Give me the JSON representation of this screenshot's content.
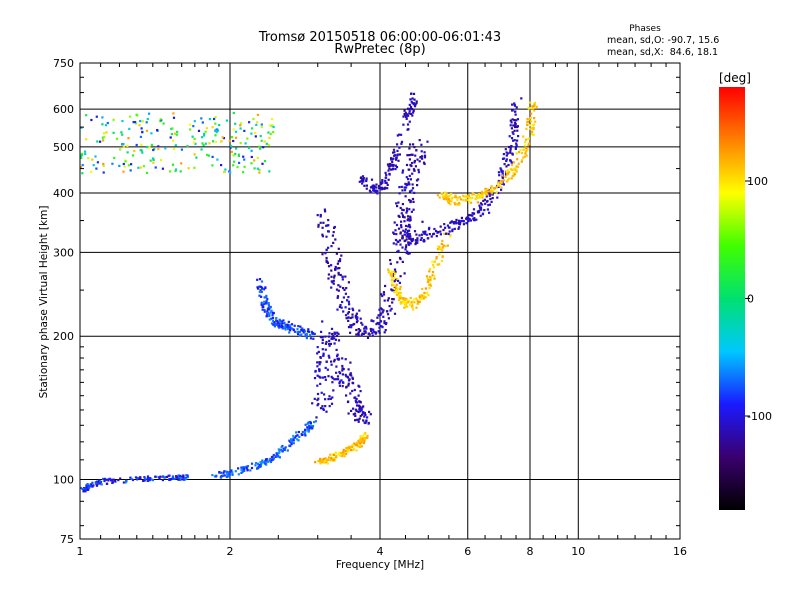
{
  "chart_data": {
    "type": "scatter",
    "title": "Tromsø 20150518 06:00:00-06:01:43",
    "subtitle": "RwPretec (8p)",
    "xlabel": "Frequency [MHz]",
    "ylabel": "Stationary phase Virtual Height [km]",
    "x_scale": "log2",
    "y_scale": "log",
    "xlim": [
      1,
      16
    ],
    "ylim": [
      75,
      750
    ],
    "x_ticks": [
      1,
      2,
      4,
      6,
      8,
      10,
      16
    ],
    "y_ticks": [
      75,
      100,
      200,
      300,
      400,
      500,
      600,
      750
    ],
    "grid": true,
    "stats": {
      "heading": "Phases",
      "line_o": "mean, sd,O: -90.7, 15.6",
      "line_x": "mean, sd,X:  84.6, 18.1"
    },
    "colorbar": {
      "label": "[deg]",
      "range": [
        -180,
        180
      ],
      "ticks": [
        100,
        0,
        -100
      ],
      "stops": [
        "#000000",
        "#3a006e",
        "#1a1aff",
        "#00c8ff",
        "#00e070",
        "#40ff00",
        "#ffff00",
        "#ff8000",
        "#ff0000"
      ]
    },
    "traces": [
      {
        "kind": "band",
        "x": [
          1.0,
          2.45
        ],
        "y": [
          440,
          590
        ],
        "phase": [
          -110,
          130
        ]
      },
      {
        "kind": "curve",
        "pts": [
          [
            1.0,
            95
          ],
          [
            1.05,
            97
          ],
          [
            1.1,
            99
          ],
          [
            1.3,
            100
          ],
          [
            1.5,
            101
          ],
          [
            1.65,
            101
          ]
        ],
        "spread": 0.012,
        "phase": [
          -115,
          -60
        ]
      },
      {
        "kind": "curve",
        "pts": [
          [
            1.85,
            102
          ],
          [
            2.0,
            103
          ],
          [
            2.2,
            106
          ],
          [
            2.4,
            110
          ],
          [
            2.6,
            117
          ],
          [
            2.8,
            126
          ],
          [
            2.95,
            132
          ]
        ],
        "spread": 0.015,
        "phase": [
          -95,
          -55
        ]
      },
      {
        "kind": "curve",
        "pts": [
          [
            3.0,
            108
          ],
          [
            3.2,
            111
          ],
          [
            3.4,
            114
          ],
          [
            3.6,
            118
          ],
          [
            3.75,
            124
          ]
        ],
        "spread": 0.015,
        "phase": [
          95,
          130
        ]
      },
      {
        "kind": "curve",
        "pts": [
          [
            2.3,
            260
          ],
          [
            2.35,
            230
          ],
          [
            2.45,
            215
          ],
          [
            2.6,
            210
          ],
          [
            2.75,
            205
          ],
          [
            2.95,
            200
          ]
        ],
        "spread": 0.02,
        "phase": [
          -100,
          -60
        ]
      },
      {
        "kind": "curve",
        "pts": [
          [
            3.05,
            140
          ],
          [
            3.1,
            165
          ],
          [
            3.15,
            185
          ],
          [
            3.2,
            205
          ]
        ],
        "spread": 0.05,
        "phase": [
          -120,
          -100
        ]
      },
      {
        "kind": "curve",
        "pts": [
          [
            3.1,
            360
          ],
          [
            3.2,
            300
          ],
          [
            3.3,
            260
          ],
          [
            3.45,
            225
          ],
          [
            3.6,
            208
          ],
          [
            3.8,
            204
          ],
          [
            4.0,
            212
          ],
          [
            4.2,
            245
          ],
          [
            4.4,
            300
          ],
          [
            4.7,
            340
          ]
        ],
        "spread": 0.04,
        "phase": [
          -125,
          -100
        ]
      },
      {
        "kind": "curve",
        "pts": [
          [
            3.35,
            175
          ],
          [
            3.45,
            160
          ],
          [
            3.6,
            140
          ],
          [
            3.75,
            135
          ]
        ],
        "spread": 0.04,
        "phase": [
          -125,
          -100
        ]
      },
      {
        "kind": "curve",
        "pts": [
          [
            3.7,
            430
          ],
          [
            3.9,
            405
          ],
          [
            4.1,
            420
          ],
          [
            4.3,
            480
          ],
          [
            4.55,
            580
          ],
          [
            4.7,
            640
          ]
        ],
        "spread": 0.02,
        "phase": [
          -125,
          -100
        ]
      },
      {
        "kind": "curve",
        "pts": [
          [
            4.4,
            320
          ],
          [
            4.45,
            360
          ],
          [
            4.55,
            410
          ],
          [
            4.7,
            460
          ],
          [
            4.8,
            500
          ]
        ],
        "spread": 0.04,
        "phase": [
          -125,
          -100
        ]
      },
      {
        "kind": "curve",
        "pts": [
          [
            4.2,
            275
          ],
          [
            4.35,
            245
          ],
          [
            4.6,
            232
          ],
          [
            4.9,
            245
          ],
          [
            5.2,
            285
          ],
          [
            5.5,
            330
          ]
        ],
        "spread": 0.02,
        "phase": [
          90,
          130
        ]
      },
      {
        "kind": "curve",
        "pts": [
          [
            4.3,
            320
          ],
          [
            4.8,
            320
          ],
          [
            5.3,
            335
          ],
          [
            5.8,
            345
          ],
          [
            6.3,
            360
          ],
          [
            6.8,
            400
          ],
          [
            7.2,
            460
          ],
          [
            7.4,
            530
          ],
          [
            7.5,
            620
          ]
        ],
        "spread": 0.025,
        "phase": [
          -125,
          -95
        ]
      },
      {
        "kind": "curve",
        "pts": [
          [
            5.3,
            395
          ],
          [
            5.7,
            385
          ],
          [
            6.2,
            390
          ],
          [
            6.8,
            410
          ],
          [
            7.3,
            440
          ],
          [
            7.7,
            480
          ],
          [
            8.0,
            540
          ],
          [
            8.1,
            620
          ]
        ],
        "spread": 0.02,
        "phase": [
          95,
          125
        ]
      }
    ]
  }
}
